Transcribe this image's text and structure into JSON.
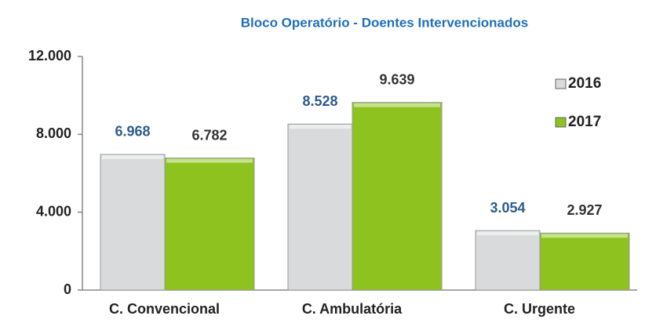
{
  "chart_data": {
    "type": "bar",
    "title": "Bloco Operatório - Doentes Intervencionados",
    "categories": [
      "C. Convencional",
      "C. Ambulatória",
      "C. Urgente"
    ],
    "series": [
      {
        "name": "2016",
        "color": "#d9dadc",
        "label_color": "#2e5c8a",
        "values": [
          6968,
          8528,
          3054
        ],
        "value_labels": [
          "6.968",
          "8.528",
          "3.054"
        ]
      },
      {
        "name": "2017",
        "color": "#8dc21f",
        "label_color": "#333333",
        "values": [
          6782,
          9639,
          2927
        ],
        "value_labels": [
          "6.782",
          "9.639",
          "2.927"
        ]
      }
    ],
    "ylim": [
      0,
      12000
    ],
    "yticks": [
      0,
      {
        "value": 4000,
        "label": "4.000"
      },
      {
        "value": 8000,
        "label": "8.000"
      },
      {
        "value": 12000,
        "label": "12.000"
      }
    ],
    "legend": "top-right"
  }
}
